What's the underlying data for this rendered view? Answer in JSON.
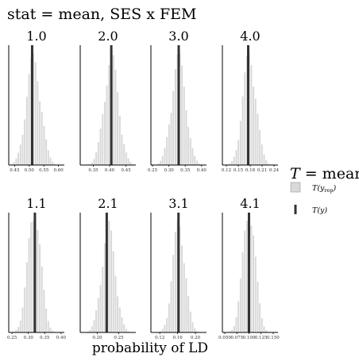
{
  "chart_data": {
    "type": "bar",
    "title": "stat = mean, SES x FEM",
    "xlabel": "probability of LD",
    "grid": false,
    "legend": {
      "position": "right",
      "title_symbol": "T",
      "title_rest": " = mean",
      "items": [
        {
          "label": "T(y",
          "sub": "rep",
          "close": ")",
          "swatch": "box"
        },
        {
          "label": "T(y)",
          "sub": "",
          "close": "",
          "swatch": "line"
        }
      ]
    },
    "colors": {
      "bars": "#d9d9d9",
      "bar_edge": "#ffffff",
      "observed": "#333333",
      "axis": "#000000"
    },
    "panels": [
      {
        "title": "1.0",
        "xlim": [
          0.43,
          0.62
        ],
        "ticks": [
          0.45,
          0.5,
          0.55,
          0.6
        ],
        "tick_labels": [
          "0.45",
          "0.50",
          "0.55",
          "0.60"
        ],
        "observed": 0.51,
        "center": 0.515,
        "sd": 0.025
      },
      {
        "title": "2.0",
        "xlim": [
          0.31,
          0.48
        ],
        "ticks": [
          0.35,
          0.4,
          0.45
        ],
        "tick_labels": [
          "0.35",
          "0.40",
          "0.45"
        ],
        "observed": 0.405,
        "center": 0.405,
        "sd": 0.022
      },
      {
        "title": "3.0",
        "xlim": [
          0.245,
          0.415
        ],
        "ticks": [
          0.25,
          0.3,
          0.35,
          0.4
        ],
        "tick_labels": [
          "0.25",
          "0.30",
          "0.35",
          "0.40"
        ],
        "observed": 0.33,
        "center": 0.33,
        "sd": 0.022
      },
      {
        "title": "4.0",
        "xlim": [
          0.11,
          0.25
        ],
        "ticks": [
          0.12,
          0.15,
          0.18,
          0.21,
          0.24
        ],
        "tick_labels": [
          "0.12",
          "0.15",
          "0.18",
          "0.21",
          "0.24"
        ],
        "observed": 0.175,
        "center": 0.178,
        "sd": 0.017
      },
      {
        "title": "1.1",
        "xlim": [
          0.24,
          0.41
        ],
        "ticks": [
          0.25,
          0.3,
          0.35,
          0.4
        ],
        "tick_labels": [
          "0.25",
          "0.30",
          "0.35",
          "0.40"
        ],
        "observed": 0.32,
        "center": 0.318,
        "sd": 0.02
      },
      {
        "title": "2.1",
        "xlim": [
          0.16,
          0.29
        ],
        "ticks": [
          0.2,
          0.25
        ],
        "tick_labels": [
          "0.20",
          "0.25"
        ],
        "observed": 0.222,
        "center": 0.226,
        "sd": 0.016
      },
      {
        "title": "3.1",
        "xlim": [
          0.1,
          0.225
        ],
        "ticks": [
          0.12,
          0.16,
          0.2
        ],
        "tick_labels": [
          "0.12",
          "0.16",
          "0.20"
        ],
        "observed": 0.162,
        "center": 0.163,
        "sd": 0.014
      },
      {
        "title": "4.1",
        "xlim": [
          0.045,
          0.16
        ],
        "ticks": [
          0.05,
          0.075,
          0.1,
          0.125,
          0.15
        ],
        "tick_labels": [
          "0.050",
          "0.075",
          "0.100",
          "0.125",
          "0.150"
        ],
        "observed": 0.1,
        "center": 0.1,
        "sd": 0.013
      }
    ]
  }
}
